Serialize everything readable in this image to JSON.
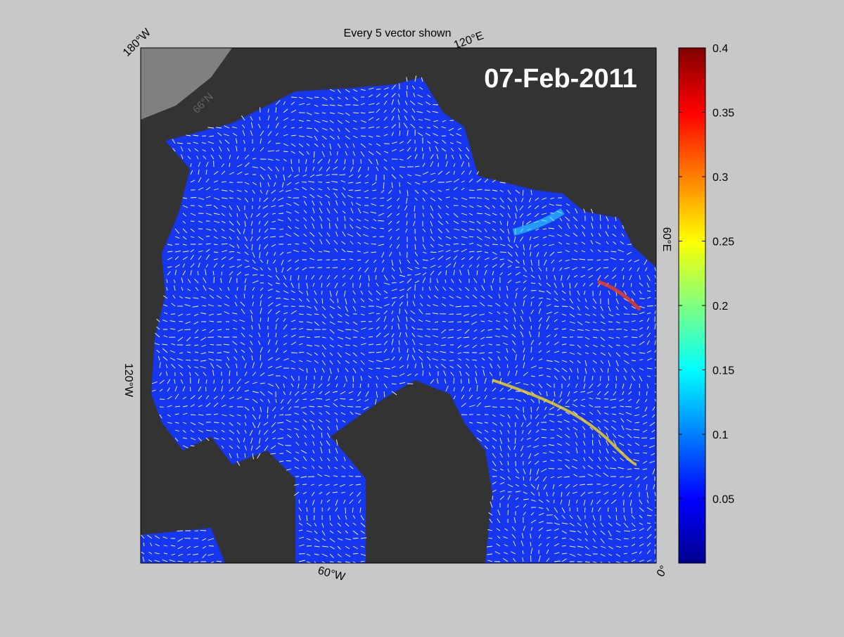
{
  "title": "Every 5 vector shown",
  "date_label": "07-Feb-2011",
  "map_labels": {
    "lon_180w": "180°W",
    "lon_120e": "120°E",
    "lon_60e": "60°E",
    "lon_0": "0°",
    "lon_60w": "60°W",
    "lon_120w": "120°W",
    "lat_66n": "66°N"
  },
  "colorbar": {
    "lim": [
      0,
      0.4
    ],
    "ticks": [
      0.05,
      0.1,
      0.15,
      0.2,
      0.25,
      0.3,
      0.35,
      0.4
    ]
  }
}
